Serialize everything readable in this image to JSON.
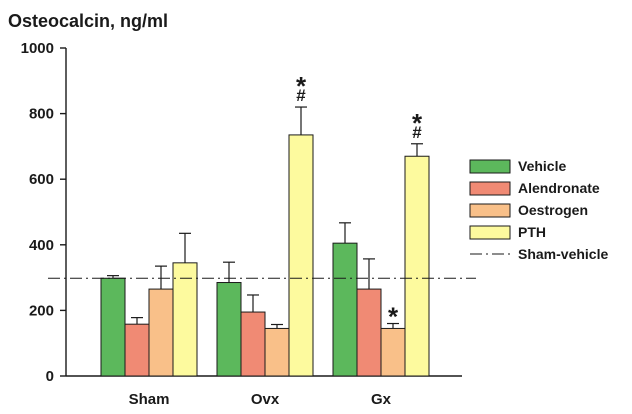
{
  "chart_data": {
    "type": "bar",
    "title": "Osteocalcin, ng/ml",
    "categories": [
      "Sham",
      "Ovx",
      "Gx"
    ],
    "ylim": [
      0,
      1000
    ],
    "yticks": [
      0,
      200,
      400,
      600,
      800,
      1000
    ],
    "series": [
      {
        "name": "Vehicle",
        "color": "#5cb85c",
        "values": [
          298,
          285,
          405
        ],
        "errors": [
          8,
          62,
          62
        ]
      },
      {
        "name": "Alendronate",
        "color": "#f08a74",
        "values": [
          158,
          195,
          265
        ],
        "errors": [
          20,
          52,
          92
        ]
      },
      {
        "name": "Oestrogen",
        "color": "#f9c089",
        "values": [
          265,
          145,
          145
        ],
        "errors": [
          70,
          12,
          15
        ]
      },
      {
        "name": "PTH",
        "color": "#fdfa9e",
        "values": [
          345,
          735,
          670
        ],
        "errors": [
          90,
          85,
          38
        ]
      }
    ],
    "reference_line": {
      "name": "Sham-vehicle",
      "value": 298,
      "style": "dash-dot"
    },
    "annotations": [
      {
        "category": "Ovx",
        "series": "PTH",
        "marks": [
          "*",
          "#"
        ]
      },
      {
        "category": "Gx",
        "series": "PTH",
        "marks": [
          "*",
          "#"
        ]
      },
      {
        "category": "Gx",
        "series": "Oestrogen",
        "marks": [
          "*"
        ]
      }
    ],
    "legend_position": "right",
    "grid": false
  }
}
